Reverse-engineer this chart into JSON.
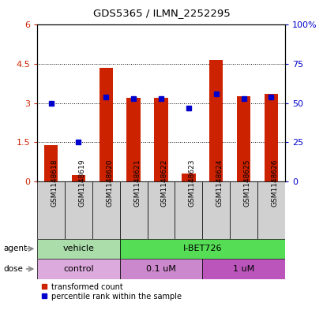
{
  "title": "GDS5365 / ILMN_2252295",
  "samples": [
    "GSM1148618",
    "GSM1148619",
    "GSM1148620",
    "GSM1148621",
    "GSM1148622",
    "GSM1148623",
    "GSM1148624",
    "GSM1148625",
    "GSM1148626"
  ],
  "red_values": [
    1.4,
    0.25,
    4.35,
    3.2,
    3.2,
    0.3,
    4.65,
    3.25,
    3.35
  ],
  "blue_values_right": [
    50,
    25,
    54,
    53,
    53,
    47,
    56,
    53,
    54
  ],
  "left_ylim": [
    0,
    6
  ],
  "right_ylim": [
    0,
    100
  ],
  "left_yticks": [
    0,
    1.5,
    3.0,
    4.5,
    6
  ],
  "right_yticks": [
    0,
    25,
    50,
    75,
    100
  ],
  "right_yticklabels": [
    "0",
    "25",
    "50",
    "75",
    "100%"
  ],
  "left_yticklabels": [
    "0",
    "1.5",
    "3",
    "4.5",
    "6"
  ],
  "agent_labels": [
    "vehicle",
    "I-BET726"
  ],
  "agent_n": [
    3,
    6
  ],
  "agent_color_vehicle": "#aaddaa",
  "agent_color_ibet": "#55dd55",
  "dose_labels": [
    "control",
    "0.1 uM",
    "1 uM"
  ],
  "dose_n": [
    3,
    3,
    3
  ],
  "dose_color_control": "#ddaadd",
  "dose_color_01": "#cc88cc",
  "dose_color_1": "#bb55bb",
  "bar_color": "#cc2200",
  "dot_color": "#0000cc",
  "legend_red": "transformed count",
  "legend_blue": "percentile rank within the sample",
  "bg_sample": "#d0d0d0"
}
